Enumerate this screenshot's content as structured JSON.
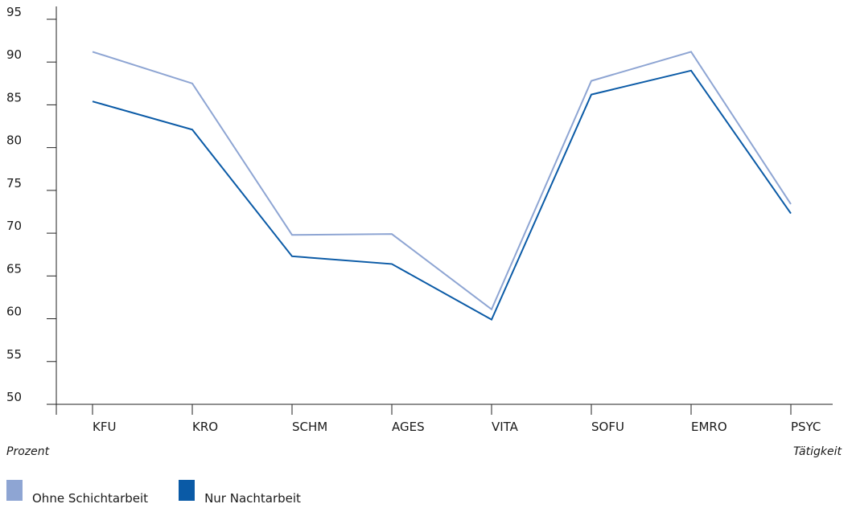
{
  "chart_data": {
    "type": "line",
    "categories": [
      "KFU",
      "KRO",
      "SCHM",
      "AGES",
      "VITA",
      "SOFU",
      "EMRO",
      "PSYC"
    ],
    "series": [
      {
        "name": "Ohne Schichtarbeit",
        "color": "#8ea5d3",
        "values": [
          91.2,
          87.5,
          69.8,
          69.9,
          61.1,
          87.8,
          91.2,
          73.4
        ]
      },
      {
        "name": "Nur Nachtarbeit",
        "color": "#0a5aa6",
        "values": [
          85.4,
          82.1,
          67.3,
          66.4,
          59.9,
          86.2,
          89.0,
          72.3
        ]
      }
    ],
    "yticks": [
      50,
      55,
      60,
      65,
      70,
      75,
      80,
      85,
      90,
      95
    ],
    "ylim": [
      50,
      96.5
    ],
    "xlabel": "Tätigkeit",
    "ylabel": "Prozent",
    "legend_position": "bottom-left",
    "grid": false
  }
}
